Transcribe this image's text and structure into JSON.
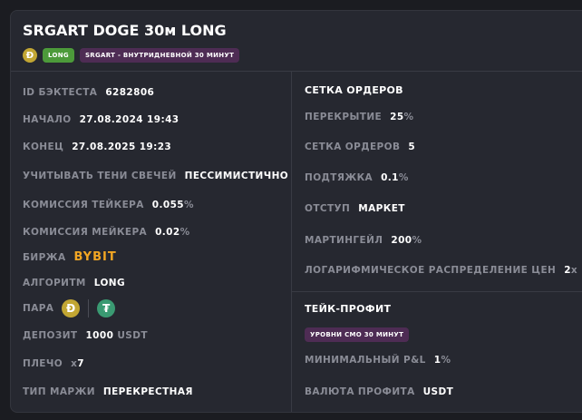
{
  "title": "SRGART DOGE 30м LONG",
  "tags": {
    "coin_icon": "dogecoin-icon",
    "direction": "LONG",
    "strategy": "SRGART - ВНУТРИДНЕВНОЙ 30 МИНУТ"
  },
  "left": {
    "id": {
      "label": "ID БЭКТЕСТА",
      "value": "6282806"
    },
    "start": {
      "label": "НАЧАЛО",
      "value": "27.08.2024 19:43"
    },
    "end": {
      "label": "КОНЕЦ",
      "value": "27.08.2025 19:23"
    },
    "shadows": {
      "label": "УЧИТЫВАТЬ ТЕНИ СВЕЧЕЙ",
      "value": "ПЕССИМИСТИЧНО"
    },
    "taker": {
      "label": "КОМИССИЯ ТЕЙКЕРА",
      "value": "0.055",
      "unit": "%"
    },
    "maker": {
      "label": "КОМИССИЯ МЕЙКЕРА",
      "value": "0.02",
      "unit": "%"
    },
    "exchange": {
      "label": "БИРЖА",
      "value": "BYBIT"
    },
    "algo": {
      "label": "АЛГОРИТМ",
      "value": "LONG"
    },
    "pair": {
      "label": "ПАРА",
      "base_icon": "dogecoin-icon",
      "quote_icon": "tether-icon"
    },
    "deposit": {
      "label": "ДЕПОЗИТ",
      "value": "1000",
      "unit": "USDT"
    },
    "leverage": {
      "label": "ПЛЕЧО",
      "prefix": "x",
      "value": "7"
    },
    "margin": {
      "label": "ТИП МАРЖИ",
      "value": "ПЕРЕКРЕСТНАЯ"
    }
  },
  "right": {
    "orders_title": "СЕТКА ОРДЕРОВ",
    "overlap": {
      "label": "ПЕРЕКРЫТИЕ",
      "value": "25",
      "unit": "%"
    },
    "grid": {
      "label": "СЕТКА ОРДЕРОВ",
      "value": "5"
    },
    "pullup": {
      "label": "ПОДТЯЖКА",
      "value": "0.1",
      "unit": "%"
    },
    "offset": {
      "label": "ОТСТУП",
      "value": "МАРКЕТ"
    },
    "martingale": {
      "label": "МАРТИНГЕЙЛ",
      "value": "200",
      "unit": "%"
    },
    "log": {
      "label": "ЛОГАРИФМИЧЕСКОЕ РАСПРЕДЕЛЕНИЕ ЦЕН",
      "value": "2",
      "unit": "x"
    },
    "tp_title": "ТЕЙК-ПРОФИТ",
    "tp_tag": "УРОВНИ СМО 30 МИНУТ",
    "min_pnl": {
      "label": "МИНИМАЛЬНЫЙ P&L",
      "value": "1",
      "unit": "%"
    },
    "currency": {
      "label": "ВАЛЮТА ПРОФИТА",
      "value": "USDT"
    }
  },
  "colors": {
    "long": "#4c9a3a",
    "tag": "#4e2c54",
    "bybit": "#f2a623",
    "doge": "#c2a633",
    "usdt": "#3a9a72"
  }
}
